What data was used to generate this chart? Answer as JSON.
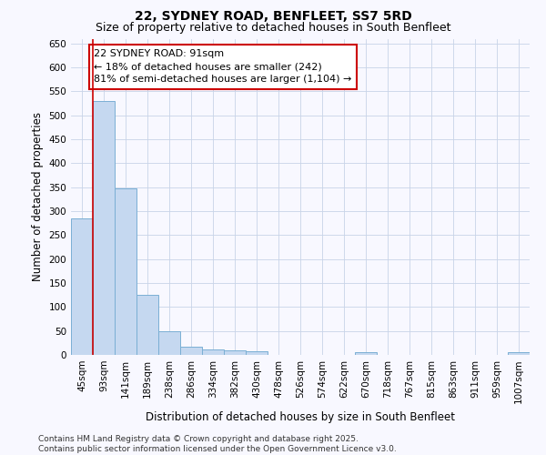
{
  "title": "22, SYDNEY ROAD, BENFLEET, SS7 5RD",
  "subtitle": "Size of property relative to detached houses in South Benfleet",
  "xlabel": "Distribution of detached houses by size in South Benfleet",
  "ylabel": "Number of detached properties",
  "categories": [
    "45sqm",
    "93sqm",
    "141sqm",
    "189sqm",
    "238sqm",
    "286sqm",
    "334sqm",
    "382sqm",
    "430sqm",
    "478sqm",
    "526sqm",
    "574sqm",
    "622sqm",
    "670sqm",
    "718sqm",
    "767sqm",
    "815sqm",
    "863sqm",
    "911sqm",
    "959sqm",
    "1007sqm"
  ],
  "values": [
    285,
    530,
    348,
    125,
    50,
    17,
    11,
    10,
    7,
    0,
    0,
    0,
    0,
    5,
    0,
    0,
    0,
    0,
    0,
    0,
    6
  ],
  "bar_color": "#c5d8f0",
  "bar_edge_color": "#7aafd4",
  "bar_edge_width": 0.7,
  "property_line_color": "#cc0000",
  "annotation_text": "22 SYDNEY ROAD: 91sqm\n← 18% of detached houses are smaller (242)\n81% of semi-detached houses are larger (1,104) →",
  "annotation_box_color": "#cc0000",
  "ylim": [
    0,
    660
  ],
  "yticks": [
    0,
    50,
    100,
    150,
    200,
    250,
    300,
    350,
    400,
    450,
    500,
    550,
    600,
    650
  ],
  "bg_color": "#f8f8ff",
  "grid_color": "#c8d4e8",
  "footnote": "Contains HM Land Registry data © Crown copyright and database right 2025.\nContains public sector information licensed under the Open Government Licence v3.0.",
  "title_fontsize": 10,
  "subtitle_fontsize": 9,
  "axis_label_fontsize": 8.5,
  "tick_fontsize": 7.5,
  "annotation_fontsize": 8,
  "footnote_fontsize": 6.5
}
